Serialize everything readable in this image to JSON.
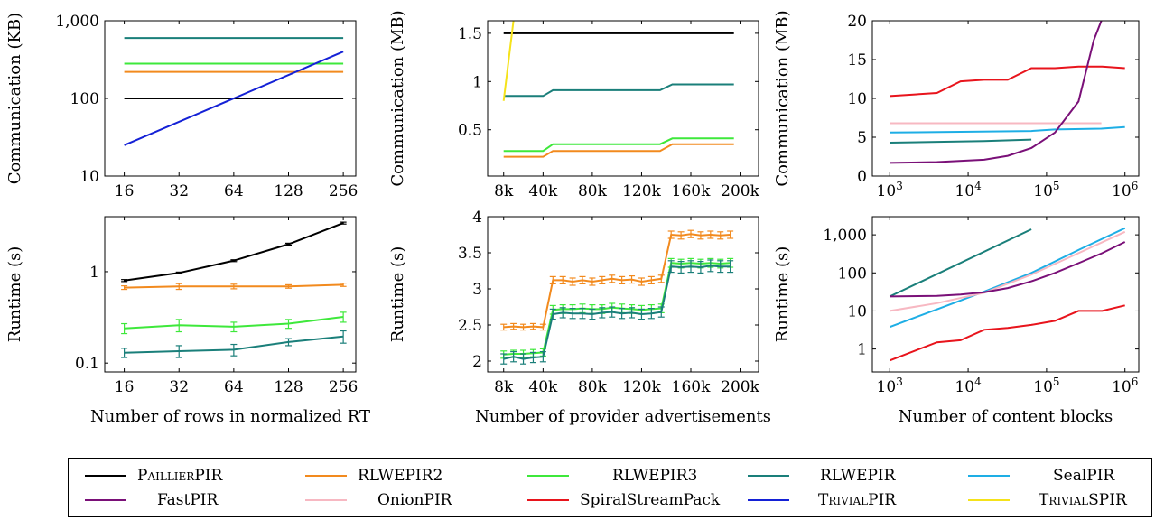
{
  "colors": {
    "PaillierPIR": "#000000",
    "RLWEPIR2": "#f28a1e",
    "RLWEPIR3": "#3ee83b",
    "RLWEPIR": "#1a7f7a",
    "SealPIR": "#1eaee5",
    "FastPIR": "#7a1078",
    "OnionPIR": "#f7b8c2",
    "SpiralStreamPack": "#e8141c",
    "TrivialPIR": "#1421d6",
    "TrivialSPIR": "#f5e21a"
  },
  "legend": [
    {
      "key": "PaillierPIR",
      "label": "PaillierPIR",
      "smallcaps": true
    },
    {
      "key": "RLWEPIR2",
      "label": "RLWEPIR2",
      "smallcaps": false
    },
    {
      "key": "RLWEPIR3",
      "label": "RLWEPIR3",
      "smallcaps": false
    },
    {
      "key": "RLWEPIR",
      "label": "RLWEPIR",
      "smallcaps": false
    },
    {
      "key": "SealPIR",
      "label": "SealPIR",
      "smallcaps": false
    },
    {
      "key": "FastPIR",
      "label": "FastPIR",
      "smallcaps": false
    },
    {
      "key": "OnionPIR",
      "label": "OnionPIR",
      "smallcaps": false
    },
    {
      "key": "SpiralStreamPack",
      "label": "SpiralStreamPack",
      "smallcaps": false
    },
    {
      "key": "TrivialPIR",
      "label": "TrivialPIR",
      "smallcaps": true
    },
    {
      "key": "TrivialSPIR",
      "label": "TrivialSPIR",
      "smallcaps": true
    }
  ],
  "chart_data": [
    {
      "type": "line",
      "ylabel": "Communication (KB)",
      "xlabel": "",
      "xscale": "log2",
      "yscale": "log",
      "xlim": [
        12.5,
        300
      ],
      "ylim": [
        10,
        1000
      ],
      "xticks": [
        16,
        32,
        64,
        128,
        256
      ],
      "xticklabels": [
        "16",
        "32",
        "64",
        "128",
        "256"
      ],
      "yticks": [
        10,
        100,
        1000
      ],
      "yticklabels": [
        "10",
        "100",
        "1,000"
      ],
      "series": [
        {
          "key": "PaillierPIR",
          "x": [
            16,
            256
          ],
          "y": [
            100,
            100
          ]
        },
        {
          "key": "RLWEPIR2",
          "x": [
            16,
            256
          ],
          "y": [
            220,
            220
          ]
        },
        {
          "key": "RLWEPIR3",
          "x": [
            16,
            256
          ],
          "y": [
            280,
            280
          ]
        },
        {
          "key": "RLWEPIR",
          "x": [
            16,
            256
          ],
          "y": [
            600,
            600
          ]
        },
        {
          "key": "TrivialPIR",
          "x": [
            16,
            256
          ],
          "y": [
            25,
            400
          ]
        }
      ]
    },
    {
      "type": "line",
      "ylabel": "Communication (MB)",
      "xlabel": "",
      "xscale": "linear",
      "yscale": "linear",
      "xlim": [
        -5,
        215
      ],
      "ylim": [
        0.02,
        1.63
      ],
      "xticks": [
        8,
        40,
        80,
        120,
        160,
        200
      ],
      "xticklabels": [
        "8k",
        "40k",
        "80k",
        "120k",
        "160k",
        "200k"
      ],
      "yticks": [
        0.5,
        1,
        1.5
      ],
      "yticklabels": [
        "0.5",
        "1",
        "1.5"
      ],
      "series": [
        {
          "key": "PaillierPIR",
          "x": [
            8,
            195
          ],
          "y": [
            1.5,
            1.5
          ]
        },
        {
          "key": "RLWEPIR",
          "x": [
            8,
            40,
            48,
            135,
            145,
            195
          ],
          "y": [
            0.85,
            0.85,
            0.91,
            0.91,
            0.97,
            0.97
          ]
        },
        {
          "key": "RLWEPIR3",
          "x": [
            8,
            40,
            48,
            135,
            145,
            195
          ],
          "y": [
            0.28,
            0.28,
            0.35,
            0.35,
            0.41,
            0.41
          ]
        },
        {
          "key": "RLWEPIR2",
          "x": [
            8,
            40,
            48,
            135,
            145,
            195
          ],
          "y": [
            0.22,
            0.22,
            0.28,
            0.28,
            0.35,
            0.35
          ]
        },
        {
          "key": "TrivialSPIR",
          "x": [
            8,
            16
          ],
          "y": [
            0.8,
            1.63
          ]
        }
      ]
    },
    {
      "type": "line",
      "ylabel": "Communication (MB)",
      "xlabel": "",
      "xscale": "log",
      "yscale": "linear",
      "xlim": [
        600,
        1500000
      ],
      "ylim": [
        0,
        20
      ],
      "xticks": [
        1000,
        10000,
        100000,
        1000000
      ],
      "xticklabels": [
        "10^3",
        "10^4",
        "10^5",
        "10^6"
      ],
      "yticks": [
        0,
        5,
        10,
        15,
        20
      ],
      "yticklabels": [
        "0",
        "5",
        "10",
        "15",
        "20"
      ],
      "series": [
        {
          "key": "SpiralStreamPack",
          "x": [
            1000,
            2000,
            4000,
            8000,
            16000,
            32000,
            64000,
            128000,
            256000,
            512000,
            1000000
          ],
          "y": [
            10.3,
            10.5,
            10.7,
            12.2,
            12.4,
            12.4,
            13.9,
            13.9,
            14.1,
            14.1,
            13.9
          ]
        },
        {
          "key": "OnionPIR",
          "x": [
            1000,
            500000
          ],
          "y": [
            6.8,
            6.8
          ]
        },
        {
          "key": "SealPIR",
          "x": [
            1000,
            8000,
            64000,
            128000,
            500000,
            1000000
          ],
          "y": [
            5.6,
            5.7,
            5.8,
            6.0,
            6.1,
            6.3
          ]
        },
        {
          "key": "RLWEPIR",
          "x": [
            1000,
            16000,
            64000
          ],
          "y": [
            4.3,
            4.5,
            4.7
          ]
        },
        {
          "key": "FastPIR",
          "x": [
            1000,
            4000,
            16000,
            32000,
            64000,
            128000,
            256000,
            400000,
            500000
          ],
          "y": [
            1.7,
            1.8,
            2.1,
            2.6,
            3.6,
            5.6,
            9.6,
            17.5,
            20
          ]
        }
      ]
    },
    {
      "type": "line",
      "ylabel": "Runtime (s)",
      "xlabel": "Number of rows in normalized RT",
      "xscale": "log2",
      "yscale": "log",
      "xlim": [
        12.5,
        300
      ],
      "ylim": [
        0.08,
        4
      ],
      "xticks": [
        16,
        32,
        64,
        128,
        256
      ],
      "xticklabels": [
        "16",
        "32",
        "64",
        "128",
        "256"
      ],
      "yticks": [
        0.1,
        1
      ],
      "yticklabels": [
        "0.1",
        "1"
      ],
      "series": [
        {
          "key": "PaillierPIR",
          "x": [
            16,
            32,
            64,
            128,
            256
          ],
          "y": [
            0.8,
            0.97,
            1.32,
            2.0,
            3.4
          ],
          "err": [
            0.02,
            0.02,
            0.03,
            0.05,
            0.08
          ]
        },
        {
          "key": "RLWEPIR2",
          "x": [
            16,
            32,
            64,
            128,
            256
          ],
          "y": [
            0.67,
            0.69,
            0.69,
            0.69,
            0.72
          ],
          "err": [
            0.03,
            0.05,
            0.04,
            0.03,
            0.03
          ]
        },
        {
          "key": "RLWEPIR3",
          "x": [
            16,
            32,
            64,
            128,
            256
          ],
          "y": [
            0.24,
            0.26,
            0.25,
            0.27,
            0.32
          ],
          "err": [
            0.03,
            0.04,
            0.03,
            0.03,
            0.04
          ]
        },
        {
          "key": "RLWEPIR",
          "x": [
            16,
            32,
            64,
            128,
            256
          ],
          "y": [
            0.13,
            0.135,
            0.14,
            0.17,
            0.195
          ],
          "err": [
            0.015,
            0.02,
            0.02,
            0.015,
            0.03
          ]
        }
      ]
    },
    {
      "type": "line",
      "ylabel": "Runtime (s)",
      "xlabel": "Number of provider advertisements",
      "xscale": "linear",
      "yscale": "linear",
      "xlim": [
        -5,
        215
      ],
      "ylim": [
        1.85,
        4
      ],
      "xticks": [
        8,
        40,
        80,
        120,
        160,
        200
      ],
      "xticklabels": [
        "8k",
        "40k",
        "80k",
        "120k",
        "160k",
        "200k"
      ],
      "yticks": [
        2,
        2.5,
        3,
        3.5,
        4
      ],
      "yticklabels": [
        "2",
        "2.5",
        "3",
        "3.5",
        "4"
      ],
      "series": [
        {
          "key": "RLWEPIR2",
          "x": [
            8,
            16,
            24,
            32,
            40,
            48,
            56,
            64,
            72,
            80,
            88,
            96,
            104,
            112,
            120,
            128,
            136,
            144,
            152,
            160,
            168,
            176,
            184,
            192
          ],
          "y": [
            2.47,
            2.48,
            2.47,
            2.48,
            2.47,
            3.12,
            3.12,
            3.1,
            3.12,
            3.1,
            3.12,
            3.14,
            3.12,
            3.13,
            3.1,
            3.12,
            3.14,
            3.75,
            3.74,
            3.76,
            3.74,
            3.75,
            3.74,
            3.75
          ],
          "err": [
            0.04,
            0.04,
            0.04,
            0.04,
            0.04,
            0.05,
            0.05,
            0.05,
            0.05,
            0.05,
            0.05,
            0.05,
            0.05,
            0.05,
            0.05,
            0.05,
            0.05,
            0.05,
            0.05,
            0.05,
            0.05,
            0.05,
            0.05,
            0.05
          ]
        },
        {
          "key": "RLWEPIR3",
          "x": [
            8,
            16,
            24,
            32,
            40,
            48,
            56,
            64,
            72,
            80,
            88,
            96,
            104,
            112,
            120,
            128,
            136,
            144,
            152,
            160,
            168,
            176,
            184,
            192
          ],
          "y": [
            2.09,
            2.1,
            2.1,
            2.11,
            2.12,
            2.71,
            2.72,
            2.72,
            2.73,
            2.72,
            2.72,
            2.74,
            2.73,
            2.72,
            2.71,
            2.72,
            2.73,
            3.36,
            3.35,
            3.36,
            3.35,
            3.36,
            3.35,
            3.36
          ],
          "err": [
            0.05,
            0.05,
            0.05,
            0.05,
            0.05,
            0.06,
            0.06,
            0.06,
            0.06,
            0.06,
            0.06,
            0.06,
            0.06,
            0.06,
            0.06,
            0.06,
            0.06,
            0.06,
            0.06,
            0.06,
            0.06,
            0.06,
            0.06,
            0.06
          ]
        },
        {
          "key": "RLWEPIR",
          "x": [
            8,
            16,
            24,
            32,
            40,
            48,
            56,
            64,
            72,
            80,
            88,
            96,
            104,
            112,
            120,
            128,
            136,
            144,
            152,
            160,
            168,
            176,
            184,
            192
          ],
          "y": [
            2.03,
            2.06,
            2.03,
            2.05,
            2.06,
            2.65,
            2.67,
            2.66,
            2.66,
            2.65,
            2.67,
            2.68,
            2.66,
            2.67,
            2.65,
            2.66,
            2.68,
            3.31,
            3.3,
            3.31,
            3.3,
            3.32,
            3.31,
            3.31
          ],
          "err": [
            0.07,
            0.07,
            0.07,
            0.07,
            0.07,
            0.07,
            0.07,
            0.07,
            0.07,
            0.07,
            0.07,
            0.07,
            0.07,
            0.07,
            0.07,
            0.07,
            0.07,
            0.08,
            0.08,
            0.08,
            0.08,
            0.08,
            0.08,
            0.08
          ]
        }
      ]
    },
    {
      "type": "line",
      "ylabel": "Runtime (s)",
      "xlabel": "Number of content blocks",
      "xscale": "log",
      "yscale": "log",
      "xlim": [
        600,
        1500000
      ],
      "ylim": [
        0.25,
        3000
      ],
      "xticks": [
        1000,
        10000,
        100000,
        1000000
      ],
      "xticklabels": [
        "10^3",
        "10^4",
        "10^5",
        "10^6"
      ],
      "yticks": [
        1,
        10,
        100,
        1000
      ],
      "yticklabels": [
        "1",
        "10",
        "100",
        "1,000"
      ],
      "series": [
        {
          "key": "RLWEPIR",
          "x": [
            1000,
            64000
          ],
          "y": [
            24,
            1400
          ]
        },
        {
          "key": "SealPIR",
          "x": [
            1000,
            4000,
            16000,
            64000,
            256000,
            1000000
          ],
          "y": [
            3.8,
            11,
            32,
            100,
            400,
            1500
          ]
        },
        {
          "key": "OnionPIR",
          "x": [
            1000,
            4000,
            16000,
            64000,
            256000,
            1000000
          ],
          "y": [
            10,
            16,
            30,
            90,
            330,
            1200
          ]
        },
        {
          "key": "FastPIR",
          "x": [
            1000,
            4000,
            8000,
            16000,
            32000,
            64000,
            128000,
            256000,
            512000,
            1000000
          ],
          "y": [
            24,
            25,
            27,
            31,
            40,
            60,
            100,
            180,
            330,
            650
          ]
        },
        {
          "key": "SpiralStreamPack",
          "x": [
            1000,
            4000,
            8000,
            16000,
            32000,
            64000,
            128000,
            256000,
            512000,
            1000000
          ],
          "y": [
            0.5,
            1.5,
            1.7,
            3.2,
            3.6,
            4.3,
            5.5,
            10,
            10,
            14
          ]
        }
      ]
    }
  ]
}
